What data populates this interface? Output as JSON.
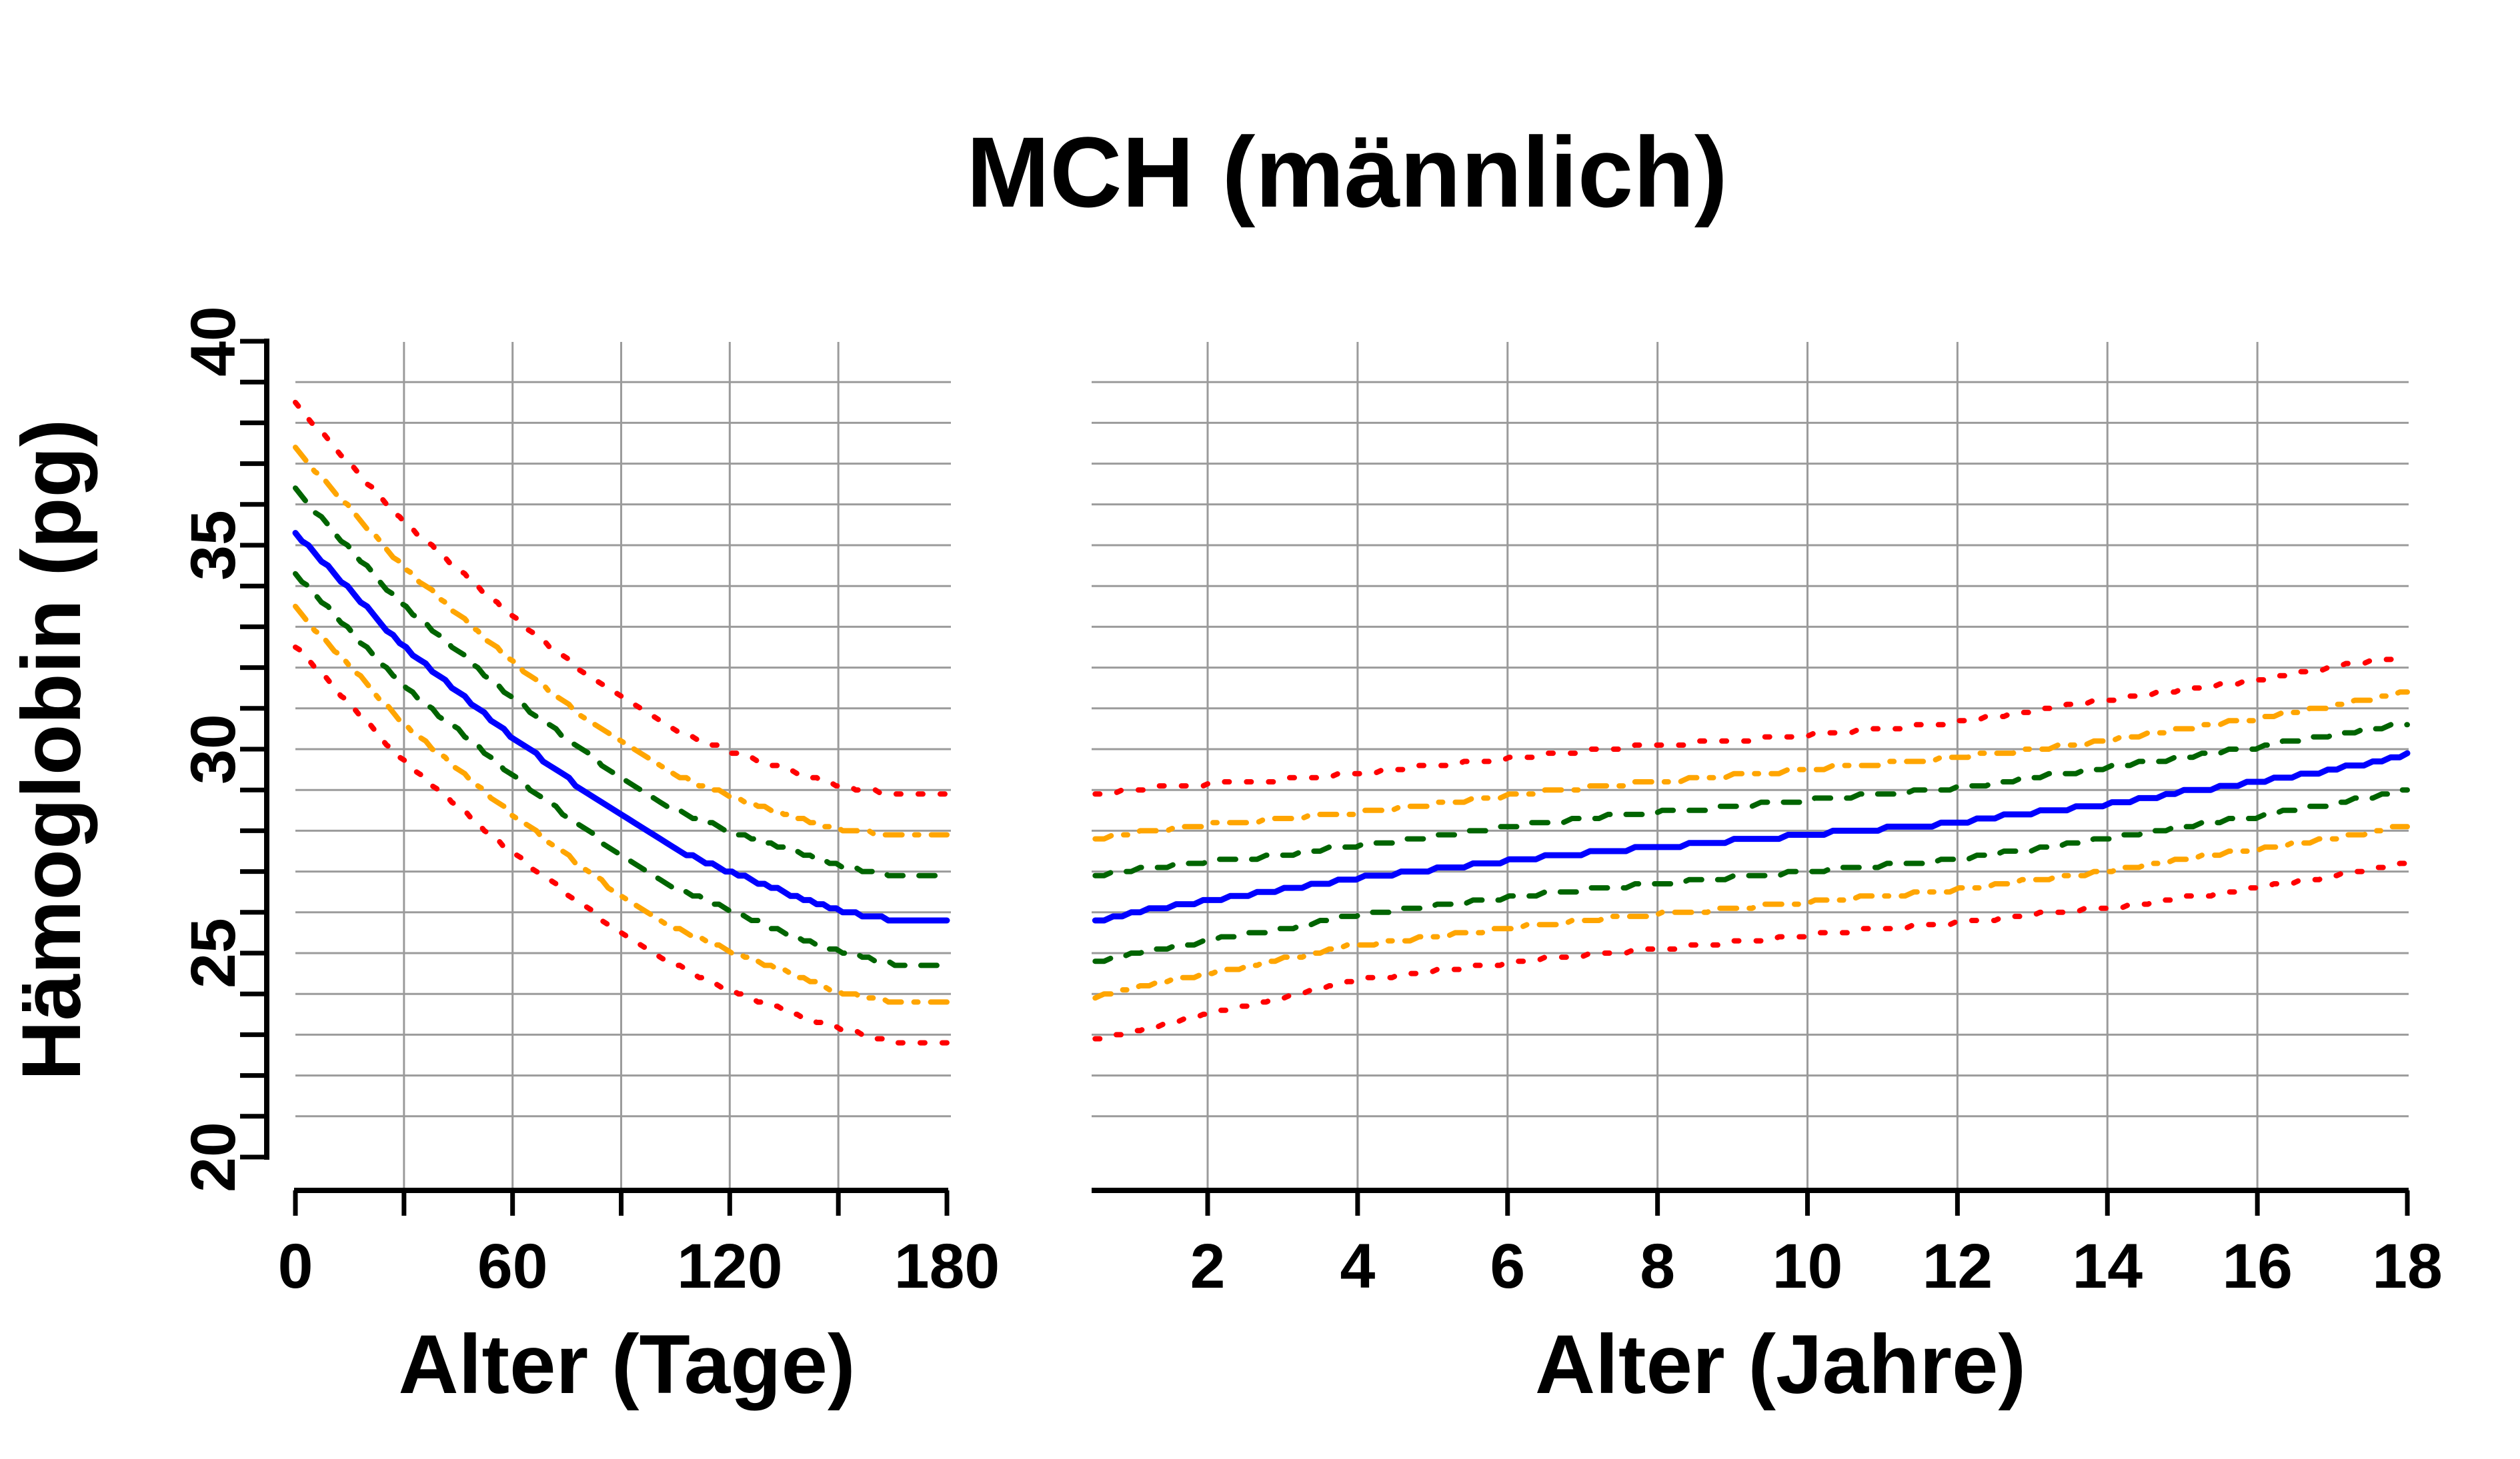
{
  "title": "MCH (männlich)",
  "y_axis": {
    "label": "Hämoglobin (pg)",
    "tick_values": [
      20,
      25,
      30,
      35,
      40
    ],
    "tick_labels": [
      "20",
      "25",
      "30",
      "35",
      "40"
    ],
    "minor_tick_step": 1,
    "range": [
      20,
      40
    ]
  },
  "colors": {
    "median": "#0000ff",
    "inner_band": "#006400",
    "mid_band": "#ffa500",
    "outer_band": "#ff0000",
    "grid": "#9b9b9b",
    "axis": "#000000",
    "background": "#ffffff",
    "text": "#000000"
  },
  "chart_data": [
    {
      "type": "line",
      "panel": "left",
      "xlabel": "Alter (Tage)",
      "ylabel": "Hämoglobin (pg)",
      "xlim": [
        0,
        180
      ],
      "ylim": [
        20,
        40
      ],
      "x_ticks": [
        0,
        30,
        60,
        90,
        120,
        150,
        180
      ],
      "x_tick_labels": [
        "0",
        "",
        "60",
        "",
        "120",
        "",
        "180"
      ],
      "grid_x": [
        30,
        60,
        90,
        120,
        150
      ],
      "grid_y": [
        21,
        22,
        23,
        24,
        25,
        26,
        27,
        28,
        29,
        30,
        31,
        32,
        33,
        34,
        35,
        36,
        37,
        38,
        39
      ],
      "x": [
        0,
        15,
        30,
        45,
        60,
        75,
        90,
        105,
        120,
        135,
        150,
        165,
        180
      ],
      "series": [
        {
          "name": "upper-outer-dotted-red",
          "color": "#ff0000",
          "dash": "dotted",
          "width": 8,
          "values": [
            38.45,
            37.0,
            35.55,
            34.4,
            33.25,
            32.2,
            31.25,
            30.45,
            29.95,
            29.5,
            29.1,
            28.9,
            28.9
          ]
        },
        {
          "name": "upper-mid-dashdot-orange",
          "color": "#ffa500",
          "dash": "dashdot",
          "width": 8,
          "values": [
            37.35,
            35.9,
            34.45,
            33.3,
            32.15,
            31.1,
            30.15,
            29.35,
            28.85,
            28.4,
            28.05,
            27.9,
            27.9
          ]
        },
        {
          "name": "upper-inner-dashed-green",
          "color": "#006400",
          "dash": "dashed",
          "width": 8,
          "values": [
            36.35,
            34.9,
            33.5,
            32.4,
            31.25,
            30.25,
            29.3,
            28.5,
            28.0,
            27.55,
            27.15,
            26.9,
            26.9
          ]
        },
        {
          "name": "median-solid-blue",
          "color": "#0000ff",
          "dash": "solid",
          "width": 9,
          "values": [
            35.3,
            33.9,
            32.5,
            31.4,
            30.3,
            29.3,
            28.35,
            27.55,
            27.0,
            26.5,
            26.05,
            25.8,
            25.75
          ]
        },
        {
          "name": "lower-inner-dashed-green",
          "color": "#006400",
          "dash": "dashed",
          "width": 8,
          "values": [
            34.3,
            32.9,
            31.55,
            30.45,
            29.35,
            28.35,
            27.4,
            26.6,
            26.05,
            25.5,
            25.05,
            24.75,
            24.7
          ]
        },
        {
          "name": "lower-mid-dashdot-orange",
          "color": "#ffa500",
          "dash": "dashdot",
          "width": 8,
          "values": [
            33.45,
            32.05,
            30.6,
            29.5,
            28.4,
            27.4,
            26.4,
            25.6,
            25.05,
            24.55,
            24.05,
            23.8,
            23.75
          ]
        },
        {
          "name": "lower-outer-dotted-red",
          "color": "#ff0000",
          "dash": "dotted",
          "width": 8,
          "values": [
            32.55,
            31.1,
            29.7,
            28.6,
            27.45,
            26.45,
            25.5,
            24.7,
            24.1,
            23.6,
            23.15,
            22.85,
            22.8
          ]
        }
      ]
    },
    {
      "type": "line",
      "panel": "right",
      "xlabel": "Alter (Jahre)",
      "ylabel": "Hämoglobin (pg)",
      "xlim": [
        0.5,
        18
      ],
      "ylim": [
        20,
        40
      ],
      "x_ticks": [
        2,
        4,
        6,
        8,
        10,
        12,
        14,
        16,
        18
      ],
      "x_tick_labels": [
        "2",
        "4",
        "6",
        "8",
        "10",
        "12",
        "14",
        "16",
        "18"
      ],
      "grid_x": [
        2,
        4,
        6,
        8,
        10,
        12,
        14,
        16
      ],
      "grid_y": [
        21,
        22,
        23,
        24,
        25,
        26,
        27,
        28,
        29,
        30,
        31,
        32,
        33,
        34,
        35,
        36,
        37,
        38,
        39
      ],
      "x": [
        0.5,
        1,
        1.5,
        2,
        3,
        4,
        5,
        6,
        7,
        8,
        9,
        10,
        11,
        12,
        13,
        14,
        15,
        16,
        17,
        18
      ],
      "series": [
        {
          "name": "upper-outer-dotted-red",
          "color": "#ff0000",
          "dash": "dotted",
          "width": 8,
          "values": [
            28.9,
            29.0,
            29.1,
            29.15,
            29.25,
            29.4,
            29.6,
            29.75,
            29.95,
            30.1,
            30.2,
            30.35,
            30.5,
            30.65,
            30.95,
            31.2,
            31.45,
            31.7,
            32.0,
            32.3
          ]
        },
        {
          "name": "upper-mid-dashdot-orange",
          "color": "#ffa500",
          "dash": "dashdot",
          "width": 8,
          "values": [
            27.8,
            27.95,
            28.05,
            28.15,
            28.3,
            28.45,
            28.65,
            28.85,
            29.05,
            29.2,
            29.35,
            29.5,
            29.65,
            29.8,
            30.0,
            30.2,
            30.5,
            30.75,
            31.05,
            31.4
          ]
        },
        {
          "name": "upper-inner-dashed-green",
          "color": "#006400",
          "dash": "dashed",
          "width": 8,
          "values": [
            26.9,
            27.05,
            27.15,
            27.25,
            27.4,
            27.65,
            27.85,
            28.1,
            28.3,
            28.45,
            28.6,
            28.75,
            28.9,
            29.05,
            29.3,
            29.55,
            29.8,
            30.05,
            30.35,
            30.65
          ]
        },
        {
          "name": "median-solid-blue",
          "color": "#0000ff",
          "dash": "solid",
          "width": 9,
          "values": [
            25.8,
            26.0,
            26.15,
            26.3,
            26.55,
            26.85,
            27.05,
            27.25,
            27.45,
            27.6,
            27.75,
            27.9,
            28.05,
            28.2,
            28.45,
            28.65,
            28.95,
            29.2,
            29.5,
            29.85
          ]
        },
        {
          "name": "lower-inner-dashed-green",
          "color": "#006400",
          "dash": "dashed",
          "width": 8,
          "values": [
            24.75,
            25.0,
            25.15,
            25.3,
            25.6,
            25.95,
            26.15,
            26.35,
            26.55,
            26.7,
            26.85,
            27.0,
            27.15,
            27.3,
            27.55,
            27.8,
            28.1,
            28.35,
            28.65,
            29.0
          ]
        },
        {
          "name": "lower-mid-dashdot-orange",
          "color": "#ffa500",
          "dash": "dashdot",
          "width": 8,
          "values": [
            23.9,
            24.15,
            24.35,
            24.5,
            24.85,
            25.2,
            25.4,
            25.6,
            25.8,
            25.95,
            26.1,
            26.25,
            26.4,
            26.55,
            26.8,
            27.0,
            27.3,
            27.55,
            27.8,
            28.15
          ]
        },
        {
          "name": "lower-outer-dotted-red",
          "color": "#ff0000",
          "dash": "dotted",
          "width": 8,
          "values": [
            22.85,
            23.1,
            23.3,
            23.5,
            23.9,
            24.35,
            24.55,
            24.75,
            24.95,
            25.1,
            25.25,
            25.45,
            25.6,
            25.75,
            25.95,
            26.1,
            26.35,
            26.6,
            26.9,
            27.2
          ]
        }
      ]
    }
  ]
}
